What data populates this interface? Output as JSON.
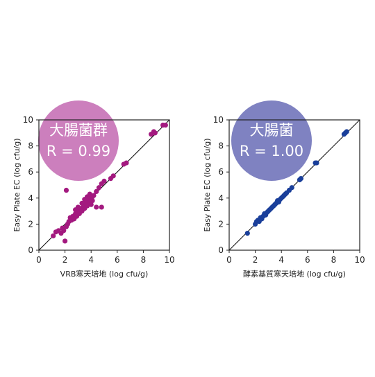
{
  "chart_data": [
    {
      "type": "scatter",
      "badge": {
        "title": "大腸菌群",
        "r_label": "R = 0.99",
        "color": "#cc7fbd"
      },
      "xlabel": "VRB寒天培地 (log cfu/g)",
      "ylabel": "Easy Plate EC (log cfu/g)",
      "xlim": [
        0,
        10
      ],
      "ylim": [
        0,
        10
      ],
      "xticks": [
        "0",
        "2",
        "4",
        "6",
        "8",
        "10"
      ],
      "yticks": [
        "0",
        "2",
        "4",
        "6",
        "8",
        "10"
      ],
      "point_color": "#a3197f",
      "reference_line": [
        [
          0,
          0
        ],
        [
          10,
          10
        ]
      ],
      "points": [
        [
          1.1,
          1.1
        ],
        [
          1.3,
          1.4
        ],
        [
          1.5,
          1.5
        ],
        [
          1.7,
          1.3
        ],
        [
          1.8,
          1.7
        ],
        [
          1.9,
          1.5
        ],
        [
          2.0,
          0.7
        ],
        [
          2.1,
          1.8
        ],
        [
          2.2,
          2.0
        ],
        [
          2.3,
          2.2
        ],
        [
          2.4,
          2.5
        ],
        [
          2.5,
          2.3
        ],
        [
          2.6,
          2.6
        ],
        [
          2.7,
          2.4
        ],
        [
          2.8,
          2.8
        ],
        [
          2.9,
          2.6
        ],
        [
          3.0,
          3.0
        ],
        [
          3.1,
          2.8
        ],
        [
          3.2,
          3.2
        ],
        [
          3.3,
          3.0
        ],
        [
          3.4,
          3.4
        ],
        [
          3.5,
          3.2
        ],
        [
          3.6,
          3.6
        ],
        [
          3.7,
          3.4
        ],
        [
          3.8,
          3.8
        ],
        [
          3.9,
          3.6
        ],
        [
          4.0,
          4.0
        ],
        [
          4.1,
          3.8
        ],
        [
          4.2,
          4.2
        ],
        [
          3.5,
          3.9
        ],
        [
          3.7,
          4.1
        ],
        [
          3.9,
          4.3
        ],
        [
          4.0,
          3.5
        ],
        [
          3.3,
          3.6
        ],
        [
          4.4,
          3.3
        ],
        [
          4.8,
          3.3
        ],
        [
          2.1,
          4.6
        ],
        [
          4.6,
          4.8
        ],
        [
          4.4,
          4.5
        ],
        [
          4.8,
          5.1
        ],
        [
          5.0,
          5.3
        ],
        [
          5.5,
          5.5
        ],
        [
          5.7,
          5.7
        ],
        [
          6.5,
          6.6
        ],
        [
          6.7,
          6.7
        ],
        [
          8.6,
          8.9
        ],
        [
          8.8,
          9.1
        ],
        [
          8.9,
          9.0
        ],
        [
          9.5,
          9.6
        ],
        [
          9.7,
          9.6
        ],
        [
          3.0,
          3.3
        ],
        [
          2.8,
          3.1
        ],
        [
          3.6,
          3.9
        ],
        [
          4.1,
          4.1
        ]
      ]
    },
    {
      "type": "scatter",
      "badge": {
        "title": "大腸菌",
        "r_label": "R = 1.00",
        "color": "#7f82c1"
      },
      "xlabel": "酵素基質寒天培地 (log cfu/g)",
      "ylabel": "Easy Plate EC (log cfu/g)",
      "xlim": [
        0,
        10
      ],
      "ylim": [
        0,
        10
      ],
      "xticks": [
        "0",
        "2",
        "4",
        "6",
        "8",
        "10"
      ],
      "yticks": [
        "0",
        "2",
        "4",
        "6",
        "8",
        "10"
      ],
      "point_color": "#1a3f9a",
      "reference_line": [
        [
          0,
          0
        ],
        [
          10,
          10
        ]
      ],
      "points": [
        [
          1.4,
          1.3
        ],
        [
          2.0,
          2.0
        ],
        [
          2.1,
          2.2
        ],
        [
          2.2,
          2.3
        ],
        [
          2.3,
          2.2
        ],
        [
          2.4,
          2.5
        ],
        [
          2.5,
          2.4
        ],
        [
          2.6,
          2.6
        ],
        [
          2.7,
          2.8
        ],
        [
          2.8,
          2.7
        ],
        [
          2.9,
          2.9
        ],
        [
          3.0,
          3.0
        ],
        [
          3.1,
          3.1
        ],
        [
          3.2,
          3.2
        ],
        [
          3.3,
          3.3
        ],
        [
          3.4,
          3.4
        ],
        [
          3.5,
          3.5
        ],
        [
          3.6,
          3.6
        ],
        [
          3.7,
          3.8
        ],
        [
          3.8,
          3.7
        ],
        [
          3.9,
          3.9
        ],
        [
          4.0,
          4.0
        ],
        [
          4.1,
          4.1
        ],
        [
          4.2,
          4.2
        ],
        [
          4.3,
          4.3
        ],
        [
          4.4,
          4.4
        ],
        [
          4.6,
          4.6
        ],
        [
          4.8,
          4.8
        ],
        [
          5.4,
          5.4
        ],
        [
          5.5,
          5.5
        ],
        [
          6.6,
          6.7
        ],
        [
          6.7,
          6.7
        ],
        [
          8.8,
          8.9
        ],
        [
          8.9,
          9.0
        ],
        [
          9.0,
          9.1
        ]
      ]
    }
  ]
}
